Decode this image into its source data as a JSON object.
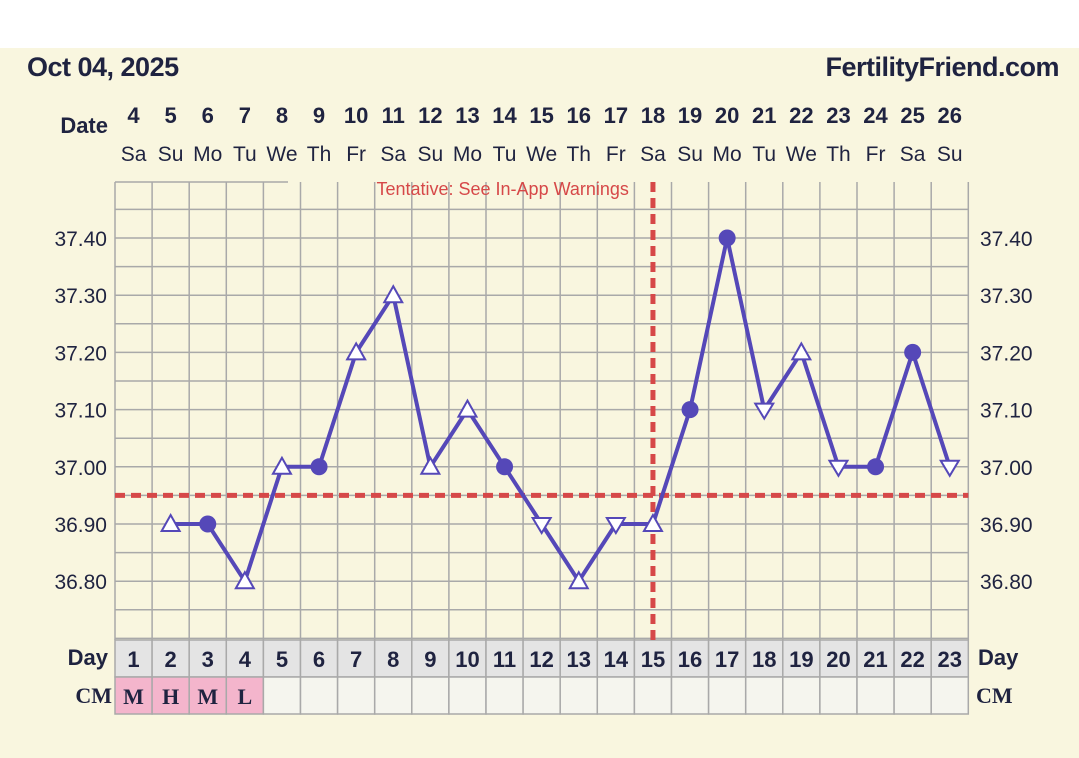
{
  "header": {
    "date": "Oct 04, 2025",
    "site": "FertilityFriend.com"
  },
  "labels": {
    "date_row": "Date",
    "day_row": "Day",
    "cm_row": "CM",
    "warning": "Tentative: See In-App Warnings"
  },
  "colors": {
    "line": "#5548b8",
    "coverline": "#d64848",
    "grid": "#a9a9a9",
    "cm_fill": "#f4b5cc",
    "day_fill": "#e4e4e4",
    "cell_fill": "#f5f5ee",
    "text": "#1f2340"
  },
  "chart_data": {
    "type": "line",
    "title": "Oct 04, 2025",
    "dates": [
      "4",
      "5",
      "6",
      "7",
      "8",
      "9",
      "10",
      "11",
      "12",
      "13",
      "14",
      "15",
      "16",
      "17",
      "18",
      "19",
      "20",
      "21",
      "22",
      "23",
      "24",
      "25",
      "26"
    ],
    "weekdays": [
      "Sa",
      "Su",
      "Mo",
      "Tu",
      "We",
      "Th",
      "Fr",
      "Sa",
      "Su",
      "Mo",
      "Tu",
      "We",
      "Th",
      "Fr",
      "Sa",
      "Su",
      "Mo",
      "Tu",
      "We",
      "Th",
      "Fr",
      "Sa",
      "Su"
    ],
    "cycle_days": [
      "1",
      "2",
      "3",
      "4",
      "5",
      "6",
      "7",
      "8",
      "9",
      "10",
      "11",
      "12",
      "13",
      "14",
      "15",
      "16",
      "17",
      "18",
      "19",
      "20",
      "21",
      "22",
      "23"
    ],
    "temperatures": [
      null,
      36.9,
      36.9,
      36.8,
      37.0,
      37.0,
      37.2,
      37.3,
      37.0,
      37.1,
      37.0,
      36.9,
      36.8,
      36.9,
      36.9,
      37.1,
      37.4,
      37.1,
      37.2,
      37.0,
      37.0,
      37.2,
      37.0
    ],
    "markers": [
      null,
      "up",
      "dot",
      "up",
      "up",
      "dot",
      "up",
      "up",
      "up",
      "up",
      "dot",
      "down",
      "up",
      "down",
      "up",
      "dot",
      "dot",
      "down",
      "up",
      "down",
      "dot",
      "dot",
      "down"
    ],
    "cervical_mucus": [
      "M",
      "H",
      "M",
      "L",
      "",
      "",
      "",
      "",
      "",
      "",
      "",
      "",
      "",
      "",
      "",
      "",
      "",
      "",
      "",
      "",
      "",
      "",
      ""
    ],
    "y_ticks": [
      "37.40",
      "37.30",
      "37.20",
      "37.10",
      "37.00",
      "36.90",
      "36.80"
    ],
    "ylim": [
      36.71,
      37.51
    ],
    "coverline": 36.95,
    "ovulation_day": 15
  }
}
